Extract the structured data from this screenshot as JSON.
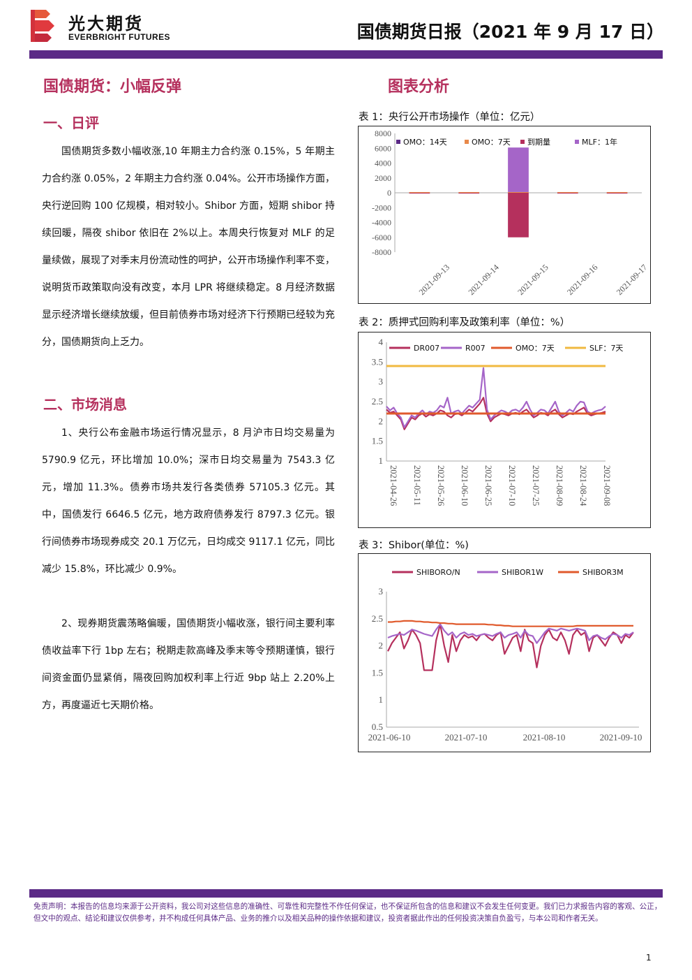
{
  "header": {
    "brand_cn": "光大期货",
    "brand_en": "EVERBRIGHT FUTURES",
    "report_title": "国债期货日报（2021 年 9 月 17 日）"
  },
  "main": {
    "title": "国债期货：小幅反弹",
    "section1_title": "一、日评",
    "section1_para": "国债期货多数小幅收涨,10 年期主力合约涨 0.15%，5 年期主力合约涨 0.05%，2 年期主力合约涨 0.04%。公开市场操作方面，央行逆回购 100 亿规模，相对较小。Shibor 方面，短期 shibor 持续回暖，隔夜 shibor 依旧在 2%以上。本周央行恢复对 MLF 的足量续做，展现了对季末月份流动性的呵护，公开市场操作利率不变，说明货币政策取向没有改变，本月 LPR 将继续稳定。8 月经济数据显示经济增长继续放缓，但目前债券市场对经济下行预期已经较为充分，国债期货向上乏力。",
    "section2_title": "二、市场消息",
    "section2_para1": "1、央行公布金融市场运行情况显示，8 月沪市日均交易量为 5790.9 亿元，环比增加 10.0%；深市日均交易量为 7543.3 亿元，增加 11.3%。债券市场共发行各类债券 57105.3 亿元。其中，国债发行 6646.5 亿元，地方政府债券发行 8797.3 亿元。银行间债券市场现券成交 20.1 万亿元，日均成交 9117.1 亿元，同比减少 15.8%，环比减少 0.9%。",
    "section2_para2": "2、现券期货震荡略偏暖，国债期货小幅收涨，银行间主要利率债收益率下行 1bp 左右；税期走款高峰及季末等令预期谨慎，银行间资金面仍显紧俏，隔夜回购加权利率上行近 9bp 站上 2.20%上方，再度逼近七天期价格。"
  },
  "charts_section_title": "图表分析",
  "chart_data": [
    {
      "caption": "表 1：央行公开市场操作（单位：亿元）",
      "type": "bar",
      "categories": [
        "2021-09-13",
        "2021-09-14",
        "2021-09-15",
        "2021-09-16",
        "2021-09-17"
      ],
      "series": [
        {
          "name": "OMO：14天",
          "color": "#5b2a86",
          "values": [
            0,
            0,
            0,
            0,
            0
          ]
        },
        {
          "name": "OMO：7天",
          "color": "#e8894a",
          "values": [
            100,
            100,
            100,
            100,
            100
          ]
        },
        {
          "name": "到期量",
          "color": "#b5305d",
          "values": [
            -100,
            -100,
            -6000,
            -100,
            -100
          ]
        },
        {
          "name": "MLF：1年",
          "color": "#a565c8",
          "values": [
            0,
            0,
            6000,
            0,
            0
          ]
        }
      ],
      "ylim": [
        -8000,
        8000
      ],
      "yticks": [
        "8000",
        "6000",
        "4000",
        "2000",
        "0",
        "-2000",
        "-4000",
        "-6000",
        "-8000"
      ],
      "legend": "top"
    },
    {
      "caption": "表 2：质押式回购利率及政策利率（单位：%）",
      "type": "line",
      "x_start": "2021-04-26",
      "x_end": "2021-09-17",
      "xticks": [
        "2021-04-26",
        "2021-05-11",
        "2021-05-26",
        "2021-06-10",
        "2021-06-25",
        "2021-07-10",
        "2021-07-25",
        "2021-08-09",
        "2021-08-24",
        "2021-09-08"
      ],
      "ylim": [
        1,
        4
      ],
      "yticks": [
        "4",
        "3.5",
        "3",
        "2.5",
        "2",
        "1.5",
        "1"
      ],
      "series": [
        {
          "name": "DR007",
          "color": "#b5305d",
          "values": [
            2.3,
            2.22,
            2.25,
            2.15,
            2.05,
            1.8,
            1.95,
            2.1,
            2.05,
            2.15,
            2.2,
            2.12,
            2.18,
            2.15,
            2.2,
            2.28,
            2.25,
            2.15,
            2.1,
            2.18,
            2.2,
            2.15,
            2.22,
            2.3,
            2.25,
            2.35,
            2.45,
            2.6,
            2.2,
            2.0,
            2.1,
            2.15,
            2.2,
            2.18,
            2.15,
            2.2,
            2.22,
            2.18,
            2.25,
            2.3,
            2.2,
            2.1,
            2.15,
            2.22,
            2.2,
            2.15,
            2.25,
            2.3,
            2.18,
            2.1,
            2.15,
            2.2,
            2.18,
            2.25,
            2.3,
            2.35,
            2.2,
            2.15,
            2.18,
            2.2,
            2.22,
            2.25
          ]
        },
        {
          "name": "R007",
          "color": "#a565c8",
          "values": [
            2.38,
            2.28,
            2.35,
            2.2,
            2.1,
            1.85,
            2.0,
            2.15,
            2.1,
            2.2,
            2.28,
            2.18,
            2.25,
            2.22,
            2.28,
            2.4,
            2.35,
            2.6,
            2.2,
            2.25,
            2.28,
            2.2,
            2.3,
            2.4,
            2.35,
            2.45,
            2.55,
            3.35,
            2.3,
            2.05,
            2.15,
            2.22,
            2.28,
            2.25,
            2.2,
            2.28,
            2.3,
            2.25,
            2.35,
            2.5,
            2.3,
            2.15,
            2.22,
            2.3,
            2.28,
            2.2,
            2.35,
            2.5,
            2.25,
            2.15,
            2.22,
            2.3,
            2.25,
            2.4,
            2.5,
            2.48,
            2.25,
            2.2,
            2.25,
            2.28,
            2.3,
            2.38
          ]
        },
        {
          "name": "OMO：7天",
          "color": "#e05a2c",
          "values": [
            2.2,
            2.2
          ]
        },
        {
          "name": "SLF：7天",
          "color": "#f0b940",
          "values": [
            3.4,
            3.4
          ]
        }
      ],
      "legend": "top"
    },
    {
      "caption": "表 3：Shibor(单位：%)",
      "type": "line",
      "x_start": "2021-06-01",
      "x_end": "2021-09-17",
      "xticks": [
        "2021-06-10",
        "2021-07-10",
        "2021-08-10",
        "2021-09-10"
      ],
      "ylim": [
        0.5,
        3
      ],
      "yticks": [
        "3",
        "2.5",
        "2",
        "1.5",
        "1",
        "0.5"
      ],
      "series": [
        {
          "name": "SHIBORO/N",
          "color": "#b5305d",
          "values": [
            1.9,
            2.05,
            2.15,
            2.25,
            1.95,
            2.1,
            2.3,
            2.2,
            2.05,
            1.55,
            1.55,
            1.55,
            2.1,
            2.4,
            2.0,
            1.7,
            2.2,
            1.9,
            2.1,
            2.2,
            2.15,
            2.18,
            2.1,
            2.2,
            2.22,
            2.15,
            2.1,
            2.2,
            2.25,
            1.85,
            2.0,
            2.15,
            2.2,
            1.9,
            2.3,
            2.1,
            2.05,
            1.6,
            2.0,
            2.2,
            2.3,
            2.15,
            2.1,
            2.25,
            2.1,
            1.85,
            2.2,
            2.3,
            2.2,
            2.25,
            1.9,
            2.15,
            2.2,
            2.1,
            2.0,
            2.15,
            2.25,
            2.2,
            2.05,
            2.2,
            2.15,
            2.25
          ]
        },
        {
          "name": "SHIBOR1W",
          "color": "#a565c8",
          "values": [
            2.15,
            2.18,
            2.2,
            2.22,
            2.2,
            2.25,
            2.3,
            2.28,
            2.25,
            2.22,
            2.2,
            2.18,
            2.3,
            2.4,
            2.28,
            2.2,
            2.25,
            2.15,
            2.22,
            2.25,
            2.2,
            2.22,
            2.18,
            2.2,
            2.22,
            2.2,
            2.18,
            2.22,
            2.25,
            2.15,
            2.2,
            2.22,
            2.25,
            2.15,
            2.28,
            2.2,
            2.18,
            2.05,
            2.15,
            2.25,
            2.32,
            2.3,
            2.28,
            2.32,
            2.3,
            2.28,
            2.3,
            2.32,
            2.3,
            2.28,
            2.1,
            2.18,
            2.2,
            2.15,
            2.12,
            2.18,
            2.22,
            2.2,
            2.15,
            2.22,
            2.2,
            2.25
          ]
        },
        {
          "name": "SHIBOR3M",
          "color": "#e05a2c",
          "values": [
            2.44,
            2.44,
            2.45,
            2.45,
            2.46,
            2.46,
            2.46,
            2.45,
            2.45,
            2.44,
            2.44,
            2.43,
            2.43,
            2.42,
            2.42,
            2.41,
            2.41,
            2.4,
            2.4,
            2.4,
            2.4,
            2.4,
            2.4,
            2.4,
            2.4,
            2.39,
            2.39,
            2.38,
            2.38,
            2.37,
            2.37,
            2.36,
            2.36,
            2.36,
            2.36,
            2.36,
            2.36,
            2.36,
            2.36,
            2.36,
            2.36,
            2.36,
            2.36,
            2.36,
            2.36,
            2.36,
            2.36,
            2.37,
            2.37,
            2.37,
            2.37,
            2.37,
            2.37,
            2.37,
            2.37,
            2.37,
            2.37,
            2.37,
            2.37,
            2.37,
            2.37,
            2.37
          ]
        }
      ],
      "legend": "top"
    }
  ],
  "footer": {
    "disclaimer": "免责声明：本报告的信息均来源于公开资料，我公司对这些信息的准确性、可靠性和完整性不作任何保证，也不保证所包含的信息和建议不会发生任何变更。我们已力求报告内容的客观、公正，但文中的观点、结论和建议仅供参考，并不构成任何具体产品、业务的推介以及相关品种的操作依据和建议，投资者据此作出的任何投资决策自负盈亏，与本公司和作者无关。",
    "page_number": "1"
  },
  "colors": {
    "brand_purple": "#5b2a86",
    "accent_red": "#b5305d",
    "logo_red": "#e03a3e"
  }
}
